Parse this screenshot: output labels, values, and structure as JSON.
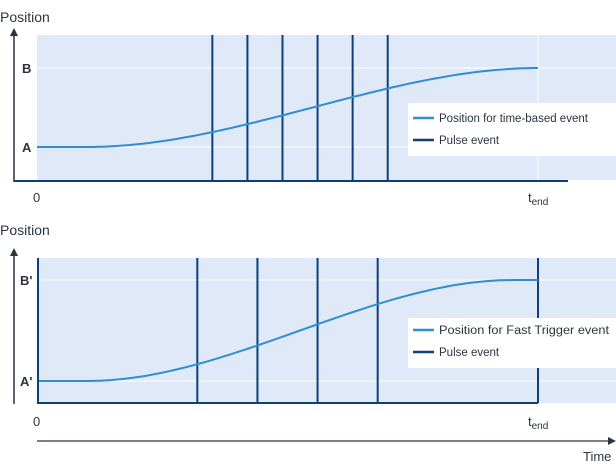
{
  "chart_data": [
    {
      "type": "line",
      "ylabel": "Position",
      "y_tick_labels": [
        "A",
        "B"
      ],
      "x_tick_labels": [
        "0",
        "t",
        "end"
      ],
      "legend": {
        "placement": "right",
        "entries": [
          "Position for time-based event",
          "Pulse event"
        ]
      },
      "pulse_event_times": [
        0.35,
        0.42,
        0.49,
        0.56,
        0.63,
        0.7
      ],
      "position_curve": {
        "start_level": 0,
        "end_level": 1,
        "ramp_start": 0.1,
        "ramp_end": 1.0,
        "end_time": 1.0
      },
      "colors": {
        "position_line": "#2f8fd0",
        "pulse_line": "#0d3f7a",
        "background": "#dfe9f7"
      }
    },
    {
      "type": "line",
      "ylabel": "Position",
      "y_tick_labels": [
        "A'",
        "B'"
      ],
      "x_tick_labels": [
        "0",
        "t",
        "end"
      ],
      "xlabel": "Time",
      "legend": {
        "placement": "right",
        "entries": [
          "Position for Fast Trigger event",
          "Pulse event"
        ]
      },
      "pulse_event_times": [
        0.32,
        0.44,
        0.56,
        0.68,
        1.0
      ],
      "position_curve": {
        "start_level": 0,
        "end_level": 1,
        "ramp_start": 0.1,
        "ramp_end": 0.95,
        "end_time": 1.0
      },
      "colors": {
        "position_line": "#2f8fd0",
        "pulse_line": "#0d3f7a",
        "background": "#dfe9f7"
      }
    }
  ]
}
